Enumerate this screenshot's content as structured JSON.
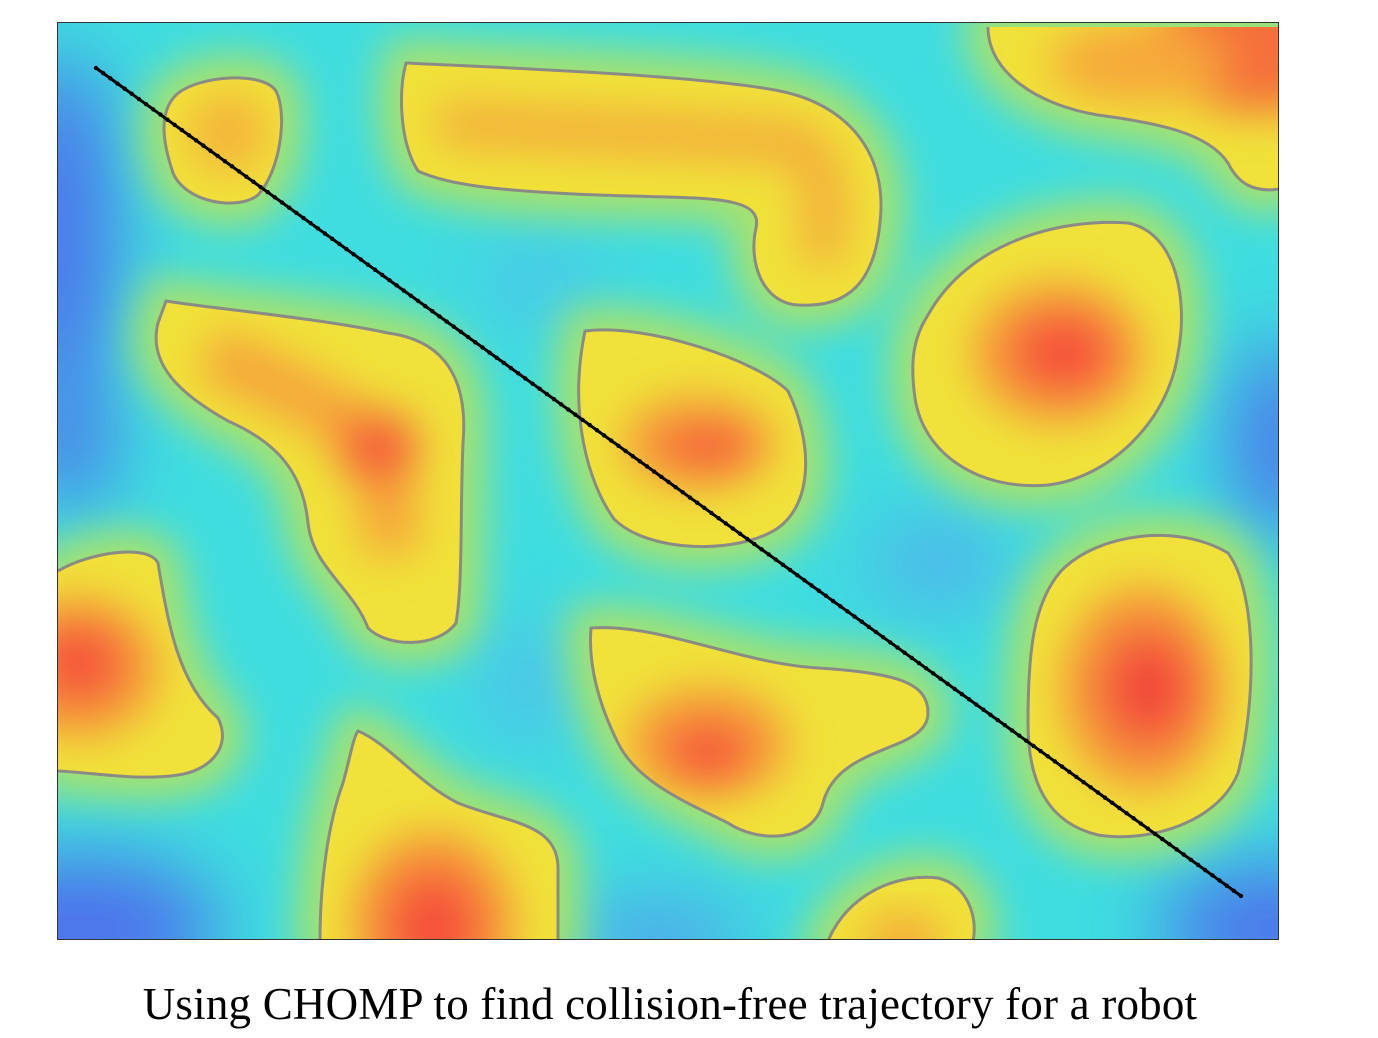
{
  "figure": {
    "caption": "Using CHOMP to find collision-free trajectory for a robot",
    "colors": {
      "far": "#4f63ee",
      "free": "#3fdde0",
      "mid": "#9fe070",
      "near": "#ecec3c",
      "obstacle_edge": "#8b8b86",
      "obstacle_fill": "#f0e23a",
      "core_orange": "#f9a33a",
      "core_red": "#f5523a",
      "trajectory": "#000000"
    }
  }
}
